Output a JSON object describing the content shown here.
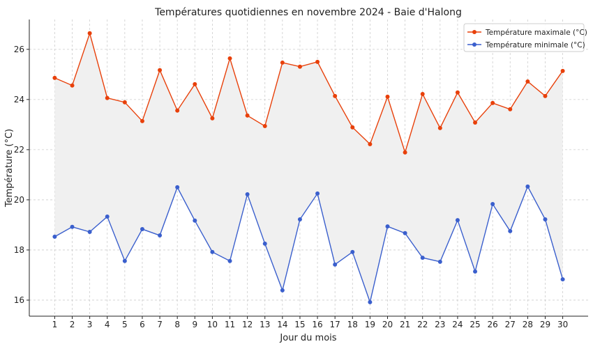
{
  "chart_data": {
    "type": "line",
    "title": "Températures quotidiennes en novembre 2024 - Baie d'Halong",
    "xlabel": "Jour du mois",
    "ylabel": "Température (°C)",
    "x": [
      1,
      2,
      3,
      4,
      5,
      6,
      7,
      8,
      9,
      10,
      11,
      12,
      13,
      14,
      15,
      16,
      17,
      18,
      19,
      20,
      21,
      22,
      23,
      24,
      25,
      26,
      27,
      28,
      29,
      30
    ],
    "xlim": [
      -0.45,
      31.45
    ],
    "ylim": [
      15.36,
      27.19
    ],
    "yticks": [
      16,
      18,
      20,
      22,
      24,
      26
    ],
    "grid": true,
    "legend": "top-right",
    "fill_between": {
      "color": "#f0f0f0"
    },
    "series": [
      {
        "name": "Température maximale (°C)",
        "color": "#e8400a",
        "values": [
          24.86,
          24.56,
          26.64,
          24.06,
          23.89,
          23.14,
          25.17,
          23.56,
          24.61,
          23.25,
          25.64,
          23.36,
          22.94,
          25.47,
          25.31,
          25.5,
          24.14,
          22.89,
          22.22,
          24.11,
          21.89,
          24.22,
          22.86,
          24.28,
          23.08,
          23.86,
          23.61,
          24.72,
          24.14,
          25.14
        ]
      },
      {
        "name": "Température minimale (°C)",
        "color": "#3a5fcd",
        "values": [
          18.53,
          18.92,
          18.72,
          19.33,
          17.56,
          18.83,
          18.58,
          20.5,
          19.17,
          17.92,
          17.56,
          20.22,
          18.25,
          16.39,
          19.22,
          20.25,
          17.42,
          17.92,
          15.92,
          18.94,
          18.67,
          17.69,
          17.53,
          19.19,
          17.14,
          19.83,
          18.75,
          20.53,
          19.22,
          16.83
        ]
      }
    ]
  }
}
